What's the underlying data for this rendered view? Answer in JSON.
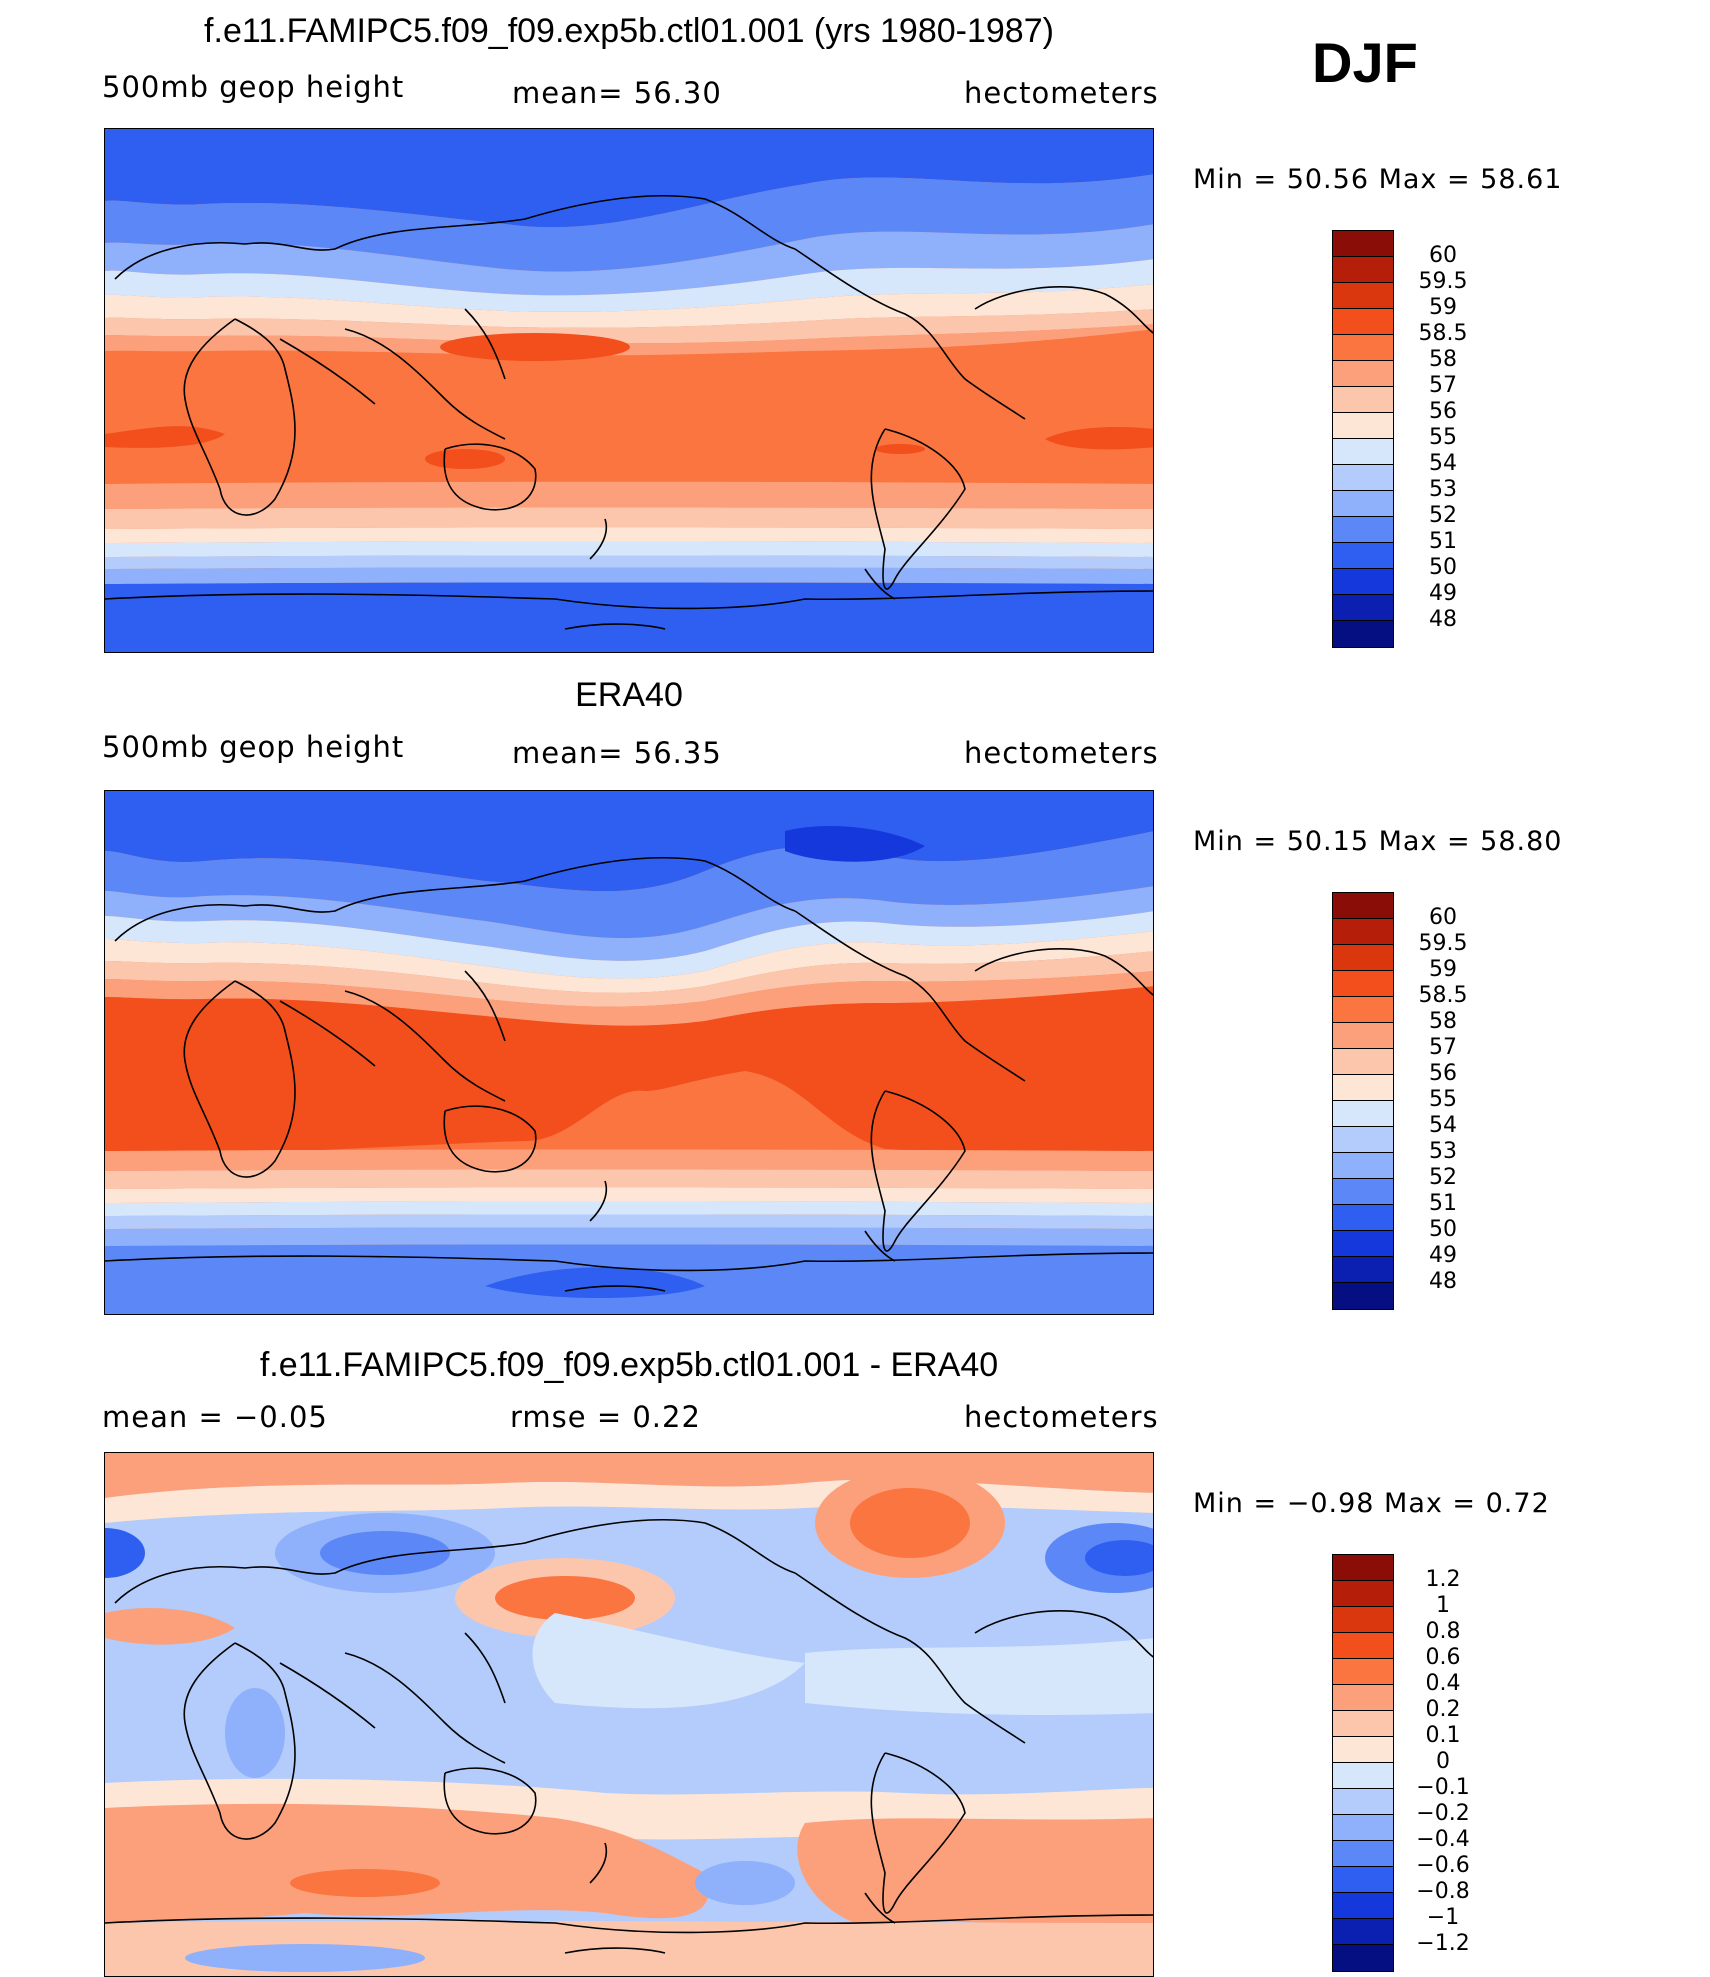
{
  "season": "DJF",
  "panels": [
    {
      "title": "f.e11.FAMIPC5.f09_f09.exp5b.ctl01.001 (yrs 1980-1987)",
      "left_label": "500mb  geop  height",
      "center_label": "mean=   56.30",
      "right_label": "hectometers",
      "minmax": "Min  =    50.56  Max  =    58.61",
      "colorbar_labels": [
        "60",
        "59.5",
        "59",
        "58.5",
        "58",
        "57",
        "56",
        "55",
        "54",
        "53",
        "52",
        "51",
        "50",
        "49",
        "48"
      ],
      "colors": [
        "#8b0d07",
        "#b51f0a",
        "#db370f",
        "#f24f1c",
        "#fa7540",
        "#fca07b",
        "#fcc6ad",
        "#fde6d6",
        "#d6e6fb",
        "#b3ccfb",
        "#8fb0fa",
        "#5c88f7",
        "#2f5ff1",
        "#1438db",
        "#0b20b0",
        "#050f82"
      ],
      "series": "model"
    },
    {
      "title": "ERA40",
      "left_label": "500mb  geop  height",
      "center_label": "mean=   56.35",
      "right_label": "hectometers",
      "minmax": "Min  =    50.15  Max  =    58.80",
      "colorbar_labels": [
        "60",
        "59.5",
        "59",
        "58.5",
        "58",
        "57",
        "56",
        "55",
        "54",
        "53",
        "52",
        "51",
        "50",
        "49",
        "48"
      ],
      "colors": [
        "#8b0d07",
        "#b51f0a",
        "#db370f",
        "#f24f1c",
        "#fa7540",
        "#fca07b",
        "#fcc6ad",
        "#fde6d6",
        "#d6e6fb",
        "#b3ccfb",
        "#8fb0fa",
        "#5c88f7",
        "#2f5ff1",
        "#1438db",
        "#0b20b0",
        "#050f82"
      ],
      "series": "obs"
    },
    {
      "title": "f.e11.FAMIPC5.f09_f09.exp5b.ctl01.001 - ERA40",
      "left_label": "mean  =    −0.05",
      "center_label": "rmse  =      0.22",
      "right_label": "hectometers",
      "minmax": "Min  =    −0.98  Max  =      0.72",
      "colorbar_labels": [
        "1.2",
        "1",
        "0.8",
        "0.6",
        "0.4",
        "0.2",
        "0.1",
        "0",
        "−0.1",
        "−0.2",
        "−0.4",
        "−0.6",
        "−0.8",
        "−1",
        "−1.2"
      ],
      "colors": [
        "#8b0d07",
        "#b51f0a",
        "#db370f",
        "#f24f1c",
        "#fa7540",
        "#fca07b",
        "#fcc6ad",
        "#fde6d6",
        "#d6e6fb",
        "#b3ccfb",
        "#8fb0fa",
        "#5c88f7",
        "#2f5ff1",
        "#1438db",
        "#0b20b0",
        "#050f82"
      ],
      "series": "diff"
    }
  ]
}
